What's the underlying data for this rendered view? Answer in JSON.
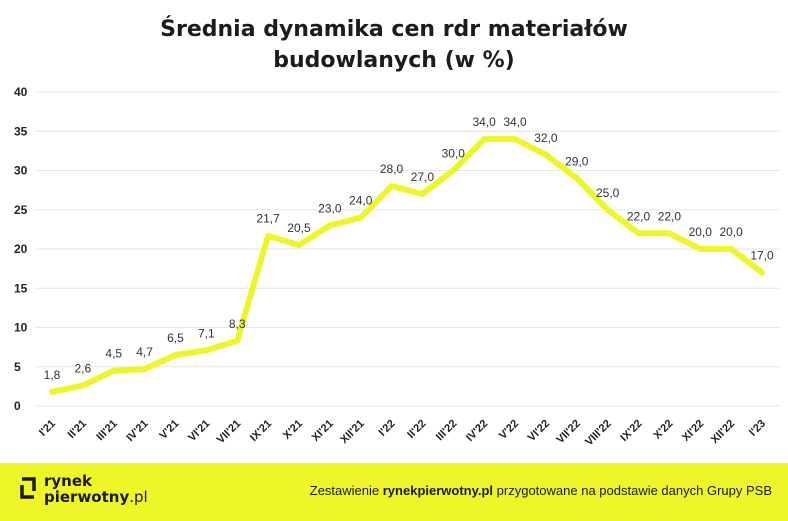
{
  "chart_data": {
    "type": "line",
    "title_lines": [
      "Średnia dynamika cen rdr materiałów",
      "budowlanych (w %)"
    ],
    "categories": [
      "I'21",
      "II'21",
      "III'21",
      "IV'21",
      "V'21",
      "VI'21",
      "VII'21",
      "IX'21",
      "X'21",
      "XI'21",
      "XII'21",
      "I'22",
      "II'22",
      "III'22",
      "IV'22",
      "V'22",
      "VI'22",
      "VII'22",
      "VIII'22",
      "IX'22",
      "X'22",
      "XI'22",
      "XII'22",
      "I'23"
    ],
    "values": [
      1.8,
      2.6,
      4.5,
      4.7,
      6.5,
      7.1,
      8.3,
      21.7,
      20.5,
      23.0,
      24.0,
      28.0,
      27.0,
      30.0,
      34.0,
      34.0,
      32.0,
      29.0,
      25.0,
      22.0,
      22.0,
      20.0,
      20.0,
      17.0
    ],
    "value_labels": [
      "1,8",
      "2,6",
      "4,5",
      "4,7",
      "6,5",
      "7,1",
      "8,3",
      "21,7",
      "20,5",
      "23,0",
      "24,0",
      "28,0",
      "27,0",
      "30,0",
      "34,0",
      "34,0",
      "32,0",
      "29,0",
      "25,0",
      "22,0",
      "22,0",
      "20,0",
      "20,0",
      "17,0"
    ],
    "yticks": [
      "0",
      "5",
      "10",
      "15",
      "20",
      "25",
      "30",
      "35",
      "40"
    ],
    "ylim": [
      0,
      40
    ],
    "grid": true,
    "line_color": "#eef62a"
  },
  "footer": {
    "logo_line1": "rynek",
    "logo_line2": "pierwotny",
    "logo_domain": ".pl",
    "note_prefix": "Zestawienie ",
    "note_bold": "rynekpierwotny.pl",
    "note_suffix": " przygotowane na podstawie danych Grupy PSB"
  }
}
